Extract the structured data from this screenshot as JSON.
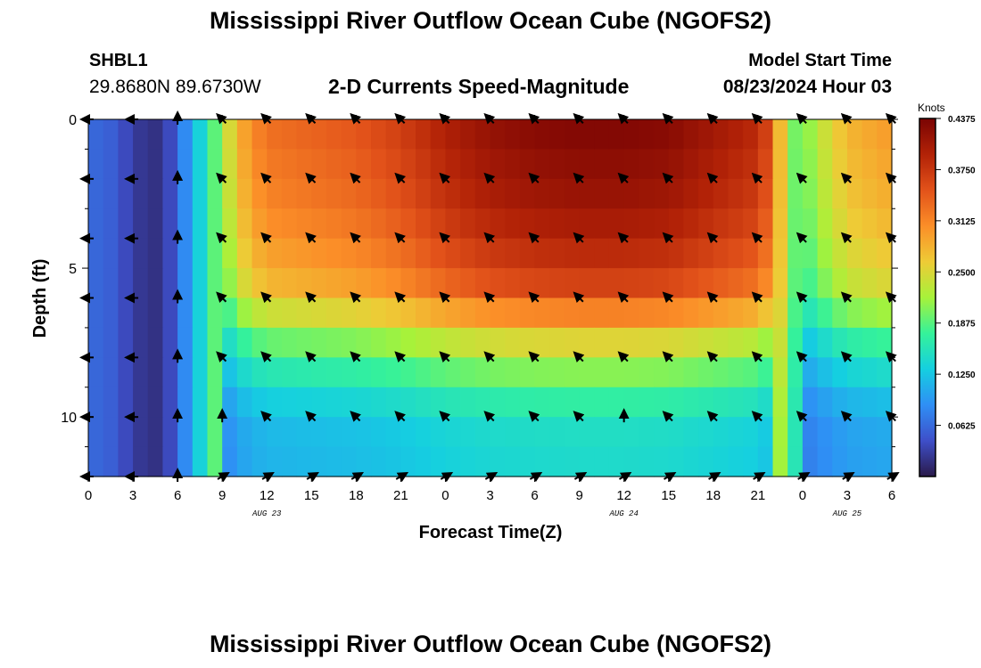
{
  "header": {
    "title": "Mississippi River Outflow Ocean Cube (NGOFS2)",
    "station_name": "SHBL1",
    "station_coords": "29.8680N  89.6730W",
    "plot_title": "2-D Currents Speed-Magnitude",
    "model_start_label": "Model Start Time",
    "model_start_value": "08/23/2024 Hour 03"
  },
  "footer": {
    "title": "Mississippi River Outflow Ocean Cube (NGOFS2)"
  },
  "chart_data": {
    "type": "heatmap",
    "title": "2-D Currents Speed-Magnitude",
    "xlabel": "Forecast Time(Z)",
    "ylabel": "Depth (ft)",
    "x_tick_labels": [
      "0",
      "3",
      "6",
      "9",
      "12",
      "15",
      "18",
      "21",
      "0",
      "3",
      "6",
      "9",
      "12",
      "15",
      "18",
      "21",
      "0",
      "3",
      "6"
    ],
    "x_range_hours": [
      0,
      54
    ],
    "date_labels": [
      {
        "hour": 12,
        "label": "AUG 23"
      },
      {
        "hour": 36,
        "label": "AUG 24"
      },
      {
        "hour": 51,
        "label": "AUG 25"
      }
    ],
    "y_ticks": [
      0,
      5,
      10
    ],
    "y_range": [
      0,
      12
    ],
    "y_inverted": true,
    "colorbar": {
      "label": "Knots",
      "min": 0,
      "max": 0.4375,
      "ticks": [
        "0.0625",
        "0.1250",
        "0.1875",
        "0.2500",
        "0.3125",
        "0.3750",
        "0.4375"
      ],
      "colors": [
        "#2a1a4a",
        "#3e4fc9",
        "#2f8ff5",
        "#15cfe0",
        "#35f29a",
        "#a7f23a",
        "#eecb36",
        "#fb8e28",
        "#e2521a",
        "#b22207",
        "#7a0403"
      ]
    },
    "depth_rows_ft": [
      0,
      1,
      2,
      3,
      4,
      5,
      6,
      7,
      8,
      9,
      10,
      11,
      12
    ],
    "speed_profile_by_depth": [
      1.0,
      0.98,
      0.96,
      0.94,
      0.9,
      0.86,
      0.8,
      0.62,
      0.5,
      0.4,
      0.32,
      0.3,
      0.3
    ],
    "speed_profile_by_time": [
      [
        0,
        0.06
      ],
      [
        1,
        0.06
      ],
      [
        2,
        0.05
      ],
      [
        3,
        0.03
      ],
      [
        4,
        0.02
      ],
      [
        5,
        0.02
      ],
      [
        6,
        0.06
      ],
      [
        7,
        0.11
      ],
      [
        8,
        0.16
      ],
      [
        9,
        0.22
      ],
      [
        10,
        0.28
      ],
      [
        11,
        0.31
      ],
      [
        12,
        0.33
      ],
      [
        15,
        0.34
      ],
      [
        18,
        0.35
      ],
      [
        21,
        0.37
      ],
      [
        24,
        0.4
      ],
      [
        27,
        0.42
      ],
      [
        30,
        0.43
      ],
      [
        33,
        0.435
      ],
      [
        36,
        0.435
      ],
      [
        39,
        0.43
      ],
      [
        42,
        0.41
      ],
      [
        45,
        0.39
      ],
      [
        46,
        0.35
      ],
      [
        47,
        0.2
      ],
      [
        48,
        0.2
      ],
      [
        49,
        0.23
      ],
      [
        51,
        0.28
      ],
      [
        54,
        0.3
      ]
    ],
    "vector_depths_ft": [
      0,
      2,
      4,
      6,
      8,
      10,
      12
    ],
    "vector_hours": [
      0,
      3,
      6,
      9,
      12,
      15,
      18,
      21,
      24,
      27,
      30,
      33,
      36,
      39,
      42,
      45,
      48,
      51,
      54
    ]
  }
}
